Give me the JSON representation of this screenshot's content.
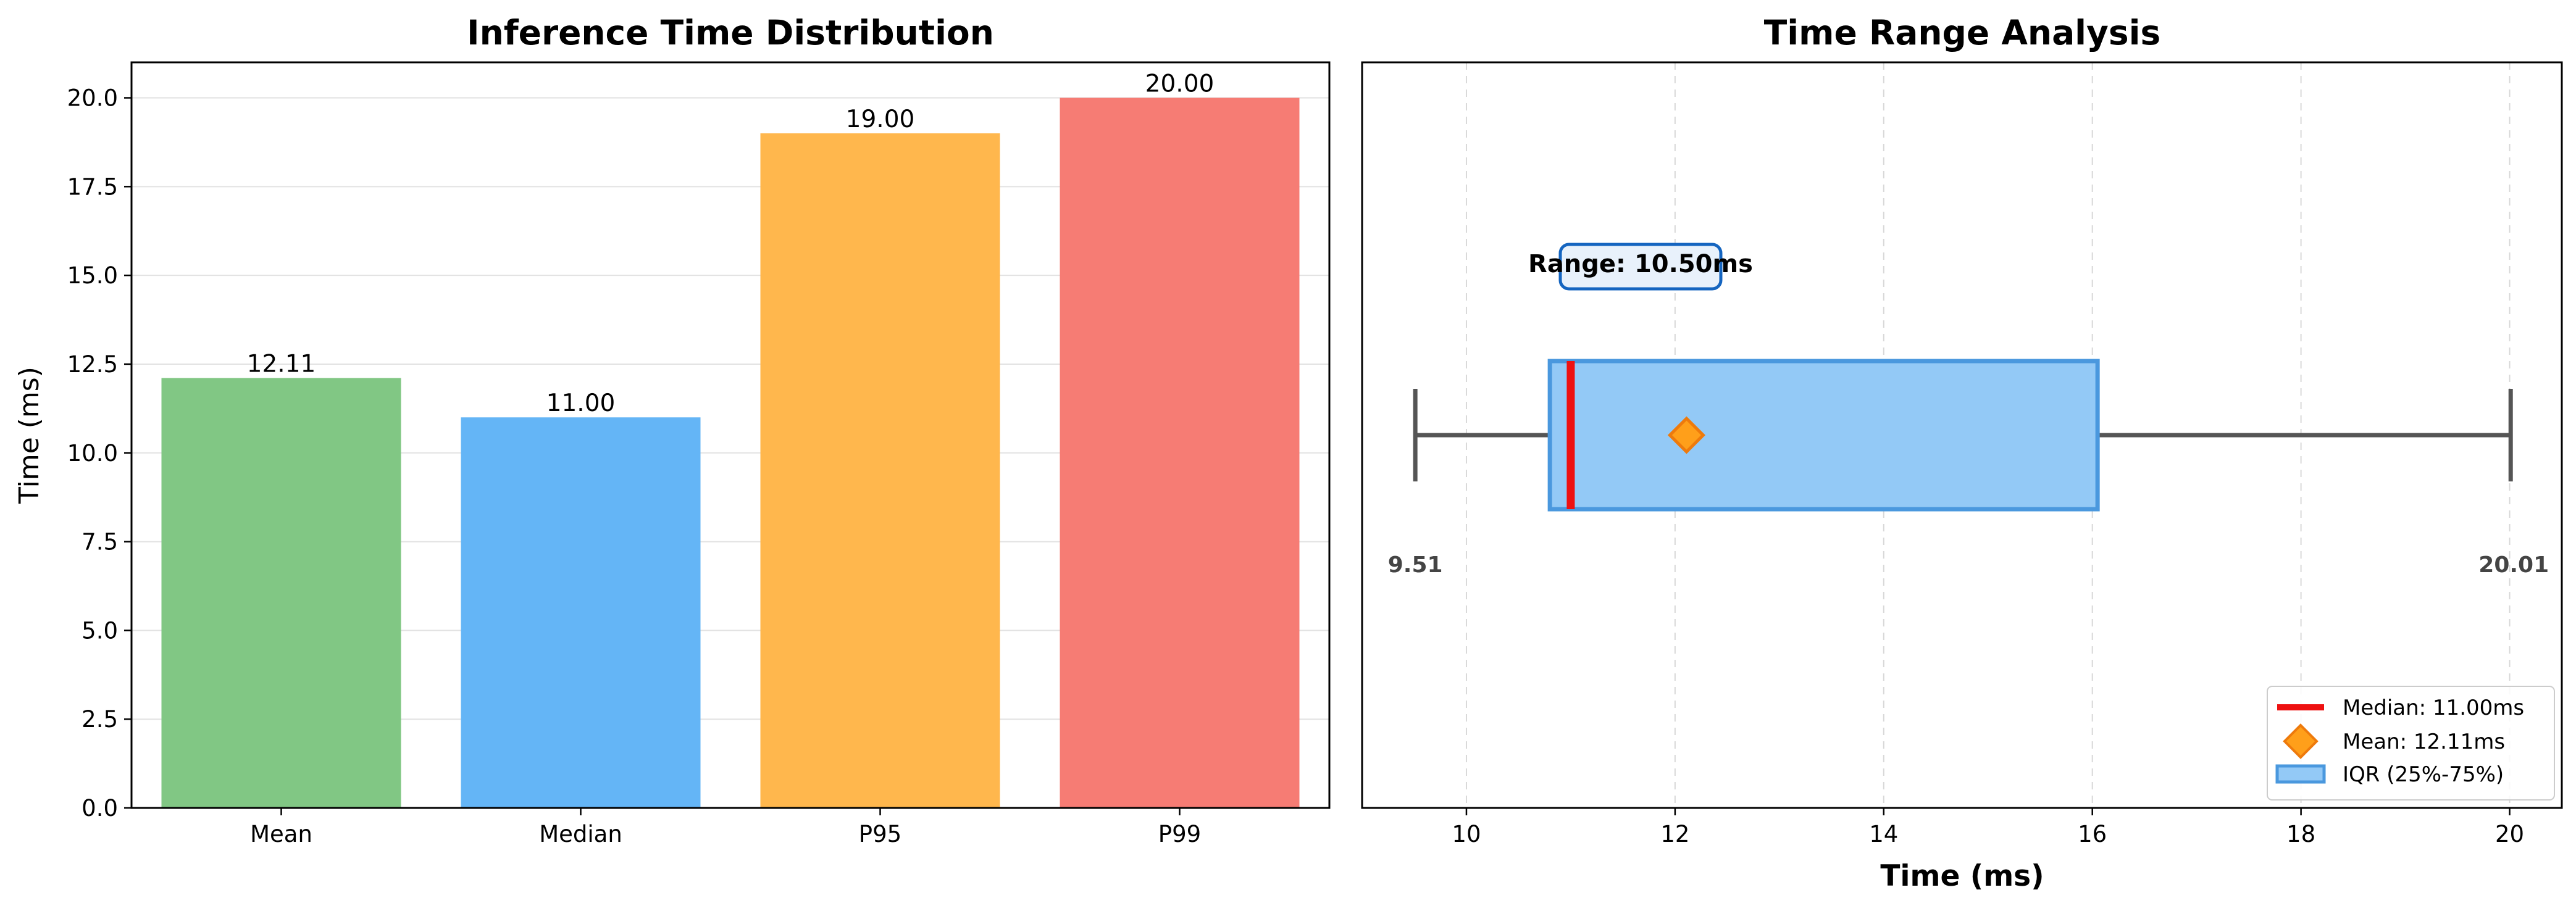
{
  "chart_data": [
    {
      "type": "bar",
      "title": "Inference Time Distribution",
      "xlabel": "",
      "ylabel": "Time (ms)",
      "categories": [
        "Mean",
        "Median",
        "P95",
        "P99"
      ],
      "values": [
        12.11,
        11.0,
        19.0,
        20.0
      ],
      "value_labels": [
        "12.11",
        "11.00",
        "19.00",
        "20.00"
      ],
      "colors": [
        "#81c784",
        "#64b5f6",
        "#ffb74d",
        "#f67c74"
      ],
      "ylim": [
        0,
        21
      ],
      "yticks": [
        "0.0",
        "2.5",
        "5.0",
        "7.5",
        "10.0",
        "12.5",
        "15.0",
        "17.5",
        "20.0"
      ],
      "grid": "horizontal"
    },
    {
      "type": "box",
      "title": "Time Range Analysis",
      "xlabel": "Time (ms)",
      "xlim": [
        9.0,
        20.5
      ],
      "xticks": [
        "10",
        "12",
        "14",
        "16",
        "18",
        "20"
      ],
      "min": 9.51,
      "q1": 10.8,
      "median": 11.0,
      "mean": 12.11,
      "q3": 16.05,
      "max": 20.01,
      "min_label": "9.51",
      "max_label": "20.01",
      "range_annotation": "Range: 10.50ms",
      "legend_position": "lower-right",
      "legend": [
        "Median: 11.00ms",
        "Mean: 12.11ms",
        "IQR (25%-75%)"
      ],
      "colors": {
        "median": "#ee1111",
        "mean": "#ff9f1a",
        "mean_edge": "#ee7a0c",
        "iqr_fill": "#93c9f6",
        "iqr_edge": "#4a98de",
        "whisker": "#555555",
        "range_box": "#1565c0",
        "range_fill": "#e8f1fb"
      },
      "grid": "vertical-dashed"
    }
  ]
}
